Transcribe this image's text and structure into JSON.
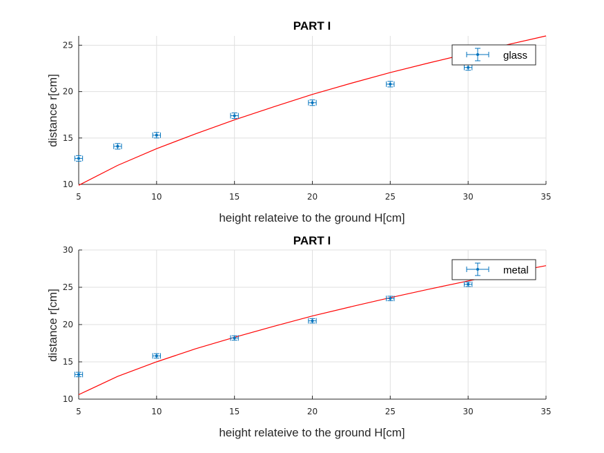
{
  "colors": {
    "data": "#0072BD",
    "fit": "#FF0000",
    "grid": "#DFDFDF",
    "axis": "#262626",
    "legend_border": "#262626"
  },
  "chart_data": [
    {
      "type": "scatter",
      "title": "PART I",
      "xlabel": "height relateive to the ground H[cm]",
      "ylabel": "distance r[cm]",
      "xlim": [
        5,
        35
      ],
      "ylim": [
        10,
        26
      ],
      "xticks": [
        5,
        10,
        15,
        20,
        25,
        30,
        35
      ],
      "yticks": [
        10,
        15,
        20,
        25
      ],
      "grid": true,
      "legend_position": "top-right",
      "series": [
        {
          "name": "glass",
          "style": "errorbar",
          "x": [
            5,
            7.5,
            10,
            15,
            20,
            25,
            30
          ],
          "y": [
            12.8,
            14.1,
            15.3,
            17.4,
            18.8,
            20.8,
            22.6
          ],
          "xerr": 0.25,
          "yerr": 0.3
        }
      ],
      "fit": {
        "style": "line",
        "x": [
          5,
          7.5,
          10,
          12.5,
          15,
          17.5,
          20,
          22.5,
          25,
          27.5,
          30,
          32.5,
          35
        ],
        "y": [
          9.9,
          12.05,
          13.85,
          15.45,
          16.95,
          18.35,
          19.7,
          20.9,
          22.05,
          23.1,
          24.1,
          25.05,
          26.0
        ]
      }
    },
    {
      "type": "scatter",
      "title": "PART I",
      "xlabel": "height relateive to the ground H[cm]",
      "ylabel": "distance r[cm]",
      "xlim": [
        5,
        35
      ],
      "ylim": [
        10,
        30
      ],
      "xticks": [
        5,
        10,
        15,
        20,
        25,
        30,
        35
      ],
      "yticks": [
        10,
        15,
        20,
        25,
        30
      ],
      "grid": true,
      "legend_position": "top-right",
      "series": [
        {
          "name": "metal",
          "style": "errorbar",
          "x": [
            5,
            10,
            15,
            20,
            25,
            30
          ],
          "y": [
            13.3,
            15.8,
            18.2,
            20.5,
            23.5,
            25.4
          ],
          "xerr": 0.25,
          "yerr": 0.3
        }
      ],
      "fit": {
        "style": "line",
        "x": [
          5,
          7.5,
          10,
          12.5,
          15,
          17.5,
          20,
          22.5,
          25,
          27.5,
          30,
          32.5,
          35
        ],
        "y": [
          10.6,
          13.05,
          15.0,
          16.75,
          18.3,
          19.75,
          21.15,
          22.4,
          23.6,
          24.75,
          25.85,
          26.9,
          27.9
        ]
      }
    }
  ]
}
